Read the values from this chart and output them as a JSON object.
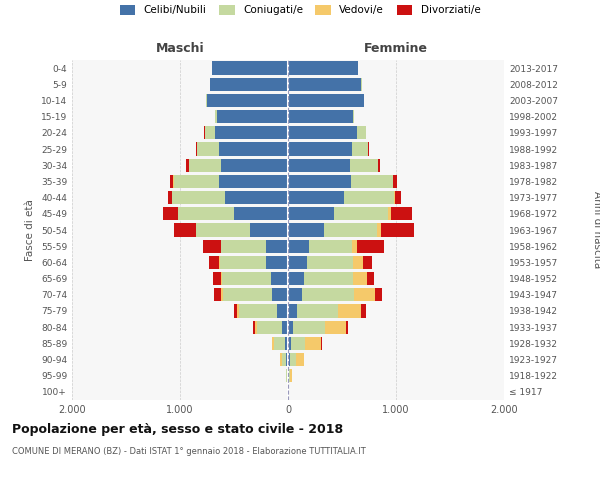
{
  "age_groups": [
    "100+",
    "95-99",
    "90-94",
    "85-89",
    "80-84",
    "75-79",
    "70-74",
    "65-69",
    "60-64",
    "55-59",
    "50-54",
    "45-49",
    "40-44",
    "35-39",
    "30-34",
    "25-29",
    "20-24",
    "15-19",
    "10-14",
    "5-9",
    "0-4"
  ],
  "birth_years": [
    "≤ 1917",
    "1918-1922",
    "1923-1927",
    "1928-1932",
    "1933-1937",
    "1938-1942",
    "1943-1947",
    "1948-1952",
    "1953-1957",
    "1958-1962",
    "1963-1967",
    "1968-1972",
    "1973-1977",
    "1978-1982",
    "1983-1987",
    "1988-1992",
    "1993-1997",
    "1998-2002",
    "2003-2007",
    "2008-2012",
    "2013-2017"
  ],
  "males": {
    "celibi": [
      5,
      10,
      20,
      30,
      60,
      100,
      150,
      160,
      200,
      200,
      350,
      500,
      580,
      640,
      620,
      640,
      680,
      660,
      750,
      720,
      700
    ],
    "coniugati": [
      2,
      8,
      35,
      100,
      230,
      350,
      450,
      450,
      430,
      420,
      500,
      520,
      490,
      420,
      300,
      200,
      90,
      20,
      5,
      2,
      0
    ],
    "vedovi": [
      0,
      2,
      15,
      20,
      20,
      20,
      25,
      10,
      10,
      5,
      5,
      3,
      2,
      2,
      0,
      0,
      2,
      0,
      0,
      0,
      0
    ],
    "divorziati": [
      0,
      0,
      0,
      0,
      10,
      30,
      60,
      70,
      90,
      160,
      200,
      130,
      40,
      30,
      20,
      10,
      3,
      0,
      0,
      0,
      0
    ]
  },
  "females": {
    "nubili": [
      5,
      10,
      20,
      30,
      50,
      80,
      130,
      150,
      180,
      190,
      330,
      430,
      520,
      580,
      570,
      590,
      640,
      600,
      700,
      680,
      650
    ],
    "coniugate": [
      2,
      10,
      50,
      130,
      290,
      380,
      480,
      450,
      420,
      400,
      490,
      500,
      460,
      390,
      260,
      150,
      80,
      15,
      3,
      1,
      0
    ],
    "vedove": [
      5,
      20,
      80,
      150,
      200,
      220,
      200,
      130,
      90,
      50,
      40,
      20,
      10,
      5,
      3,
      2,
      3,
      0,
      0,
      0,
      0
    ],
    "divorziate": [
      0,
      0,
      0,
      5,
      20,
      40,
      60,
      70,
      90,
      250,
      310,
      200,
      60,
      30,
      15,
      10,
      3,
      0,
      0,
      0,
      0
    ]
  },
  "colors": {
    "celibi": "#4472a8",
    "coniugati": "#c5d9a0",
    "vedovi": "#f5c96a",
    "divorziati": "#cc1111"
  },
  "xlim": 2000,
  "title": "Popolazione per età, sesso e stato civile - 2018",
  "subtitle": "COMUNE DI MERANO (BZ) - Dati ISTAT 1° gennaio 2018 - Elaborazione TUTTITALIA.IT",
  "xlabel_left": "Maschi",
  "xlabel_right": "Femmine",
  "ylabel_left": "Fasce di età",
  "ylabel_right": "Anni di nascita",
  "legend_labels": [
    "Celibi/Nubili",
    "Coniugati/e",
    "Vedovi/e",
    "Divorziati/e"
  ],
  "background_color": "#ffffff",
  "plot_bg": "#f7f7f7",
  "grid_color": "#cccccc"
}
